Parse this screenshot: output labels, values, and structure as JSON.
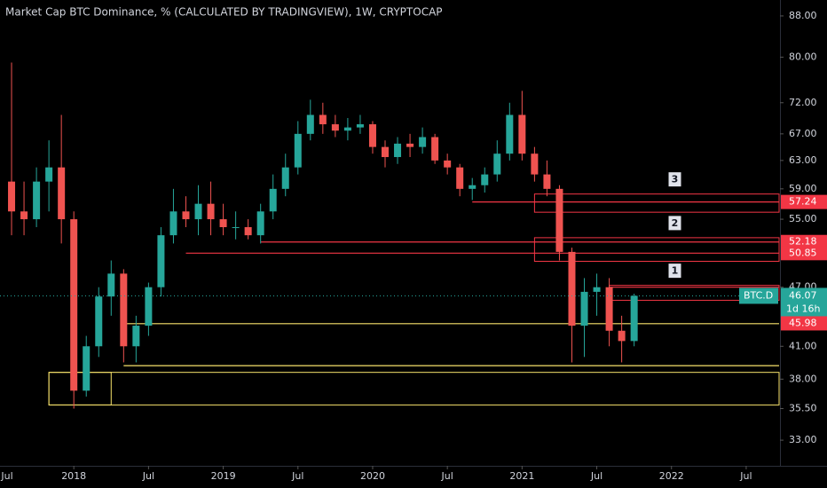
{
  "chart_data": {
    "type": "candlestick",
    "title": "Market Cap BTC Dominance, % (CALCULATED BY TRADINGVIEW), 1W, CRYPTOCAP",
    "log_scale": true,
    "up_color": "#26a69a",
    "down_color": "#ef5350",
    "ylim": [
      31.1,
      91.3
    ],
    "yticks": [
      {
        "value": 88,
        "label": "88.00"
      },
      {
        "value": 80,
        "label": "80.00"
      },
      {
        "value": 72,
        "label": "72.00"
      },
      {
        "value": 67,
        "label": "67.00"
      },
      {
        "value": 63,
        "label": "63.00"
      },
      {
        "value": 59,
        "label": "59.00"
      },
      {
        "value": 55,
        "label": "55.00"
      },
      {
        "value": 47,
        "label": "47.00"
      },
      {
        "value": 41,
        "label": "41.00"
      },
      {
        "value": 38,
        "label": "38.00"
      },
      {
        "value": 35.5,
        "label": "35.50"
      },
      {
        "value": 33,
        "label": "33.00"
      }
    ],
    "xlim": [
      "2017-07",
      "2022-09"
    ],
    "xticks": [
      {
        "value": "2017-07",
        "label": "Jul"
      },
      {
        "value": "2018-01",
        "label": "2018"
      },
      {
        "value": "2018-07",
        "label": "Jul"
      },
      {
        "value": "2019-01",
        "label": "2019"
      },
      {
        "value": "2019-07",
        "label": "Jul"
      },
      {
        "value": "2020-01",
        "label": "2020"
      },
      {
        "value": "2020-07",
        "label": "Jul"
      },
      {
        "value": "2021-01",
        "label": "2021"
      },
      {
        "value": "2021-07",
        "label": "Jul"
      },
      {
        "value": "2022-01",
        "label": "2022"
      },
      {
        "value": "2022-07",
        "label": "Jul"
      }
    ],
    "x": [
      "2017-08",
      "2017-09",
      "2017-10",
      "2017-11",
      "2017-12",
      "2018-01",
      "2018-02",
      "2018-03",
      "2018-04",
      "2018-05",
      "2018-06",
      "2018-07",
      "2018-08",
      "2018-09",
      "2018-10",
      "2018-11",
      "2018-12",
      "2019-01",
      "2019-02",
      "2019-03",
      "2019-04",
      "2019-05",
      "2019-06",
      "2019-07",
      "2019-08",
      "2019-09",
      "2019-10",
      "2019-11",
      "2019-12",
      "2020-01",
      "2020-02",
      "2020-03",
      "2020-04",
      "2020-05",
      "2020-06",
      "2020-07",
      "2020-08",
      "2020-09",
      "2020-10",
      "2020-11",
      "2020-12",
      "2021-01",
      "2021-02",
      "2021-03",
      "2021-04",
      "2021-05",
      "2021-06",
      "2021-07",
      "2021-08",
      "2021-09",
      "2021-10"
    ],
    "open": [
      60,
      56,
      55,
      60,
      62,
      55,
      37,
      41,
      46,
      48.5,
      41,
      43,
      47,
      53,
      56,
      55,
      57,
      55,
      54,
      54,
      53,
      56,
      59,
      62,
      67,
      70,
      68.5,
      67.5,
      68,
      68.5,
      65,
      63.5,
      65.5,
      65,
      66.5,
      63,
      62,
      59,
      59.5,
      61,
      64,
      70,
      64,
      61,
      59,
      51,
      43,
      46.5,
      47,
      42.5,
      41.5
    ],
    "high": [
      79,
      60,
      62,
      66,
      70,
      56,
      42,
      47,
      50,
      49,
      44,
      47.5,
      54,
      59,
      58,
      59.5,
      60,
      57,
      56,
      55,
      57,
      61,
      64,
      69,
      72.5,
      72,
      70,
      69.5,
      70,
      69,
      66,
      66.5,
      67,
      68,
      67,
      64,
      62.5,
      60.5,
      62,
      66,
      72,
      74,
      65,
      63,
      59.5,
      51.5,
      48,
      48.5,
      48,
      44,
      46.3
    ],
    "low": [
      53,
      53,
      54,
      56,
      52,
      35.5,
      36.5,
      40,
      44,
      39.5,
      39.5,
      42,
      46,
      52,
      54,
      53,
      53,
      53,
      52.5,
      52.5,
      52,
      55,
      58,
      61,
      66,
      67,
      66.5,
      66,
      67,
      64,
      62,
      62.5,
      63.5,
      64,
      62.5,
      61,
      58,
      57.5,
      58.5,
      60,
      63,
      63,
      60,
      58,
      50,
      39.5,
      40,
      44,
      41,
      39.5,
      41
    ],
    "close": [
      56,
      55,
      60,
      62,
      55,
      37,
      41,
      46,
      48.5,
      41,
      43,
      47,
      53,
      56,
      55,
      57,
      55,
      54,
      54,
      53,
      56,
      59,
      62,
      67,
      70,
      68.5,
      67.5,
      68,
      68.5,
      65,
      63.5,
      65.5,
      65,
      66.5,
      63,
      62,
      59,
      59.5,
      61,
      64,
      70,
      64,
      61,
      59,
      51,
      43,
      46.5,
      47,
      42.5,
      41.5,
      46.07
    ],
    "levels": [
      {
        "value": 57.24,
        "start": "2020-09",
        "color": "#f23645",
        "tag": true
      },
      {
        "value": 52.18,
        "start": "2019-04",
        "color": "#f23645",
        "tag": true
      },
      {
        "value": 50.85,
        "start": "2018-10",
        "color": "#f23645",
        "tag": true
      },
      {
        "value": 47,
        "start": "2021-08",
        "color": "#f23645"
      },
      {
        "value": 43.2,
        "start": "2018-05",
        "color": "#f7e26b"
      },
      {
        "value": 39.2,
        "start": "2018-05",
        "color": "#f7e26b"
      }
    ],
    "zones": [
      {
        "top": 58.3,
        "bottom": 55.9,
        "start": "2021-02",
        "color": "#f23645",
        "label": "3"
      },
      {
        "top": 52.7,
        "bottom": 49.9,
        "start": "2021-02",
        "color": "#f23645",
        "label": "2"
      },
      {
        "top": 47.2,
        "bottom": 45.6,
        "start": "2021-08",
        "color": "#f23645",
        "label": "1"
      },
      {
        "top": 38.6,
        "bottom": 35.8,
        "start": "2017-11",
        "color": "#f7e26b"
      },
      {
        "top": 38.6,
        "bottom": 35.8,
        "start": "2017-11",
        "end": "2018-04",
        "color": "#f7e26b"
      }
    ],
    "symbol": "BTC.D",
    "last_price": 46.07,
    "countdown": "1d 16h",
    "marker_price": 45.98
  }
}
